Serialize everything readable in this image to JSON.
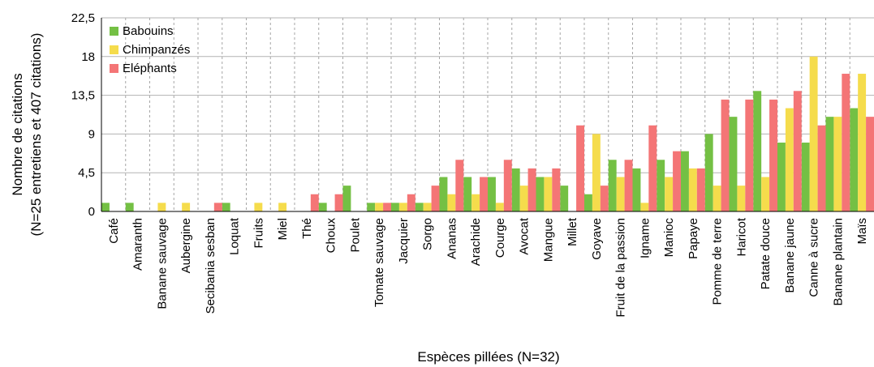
{
  "chart_data": {
    "type": "bar",
    "xlabel": "Espèces pillées (N=32)",
    "ylabel_lines": [
      "Nombre de citations",
      "(N=25 entretiens et 407 citations)"
    ],
    "ylim": [
      0,
      22.5
    ],
    "yticks": [
      "0",
      "4,5",
      "9",
      "13,5",
      "18",
      "22,5"
    ],
    "ytick_values": [
      0,
      4.5,
      9,
      13.5,
      18,
      22.5
    ],
    "grid": true,
    "legend_position": "top-left",
    "categories": [
      "Café",
      "Amaranth",
      "Banane sauvage",
      "Aubergine",
      "Secibania sesban",
      "Loquat",
      "Fruits",
      "Miel",
      "Thé",
      "Choux",
      "Poulet",
      "Tomate sauvage",
      "Jacquier",
      "Sorgo",
      "Ananas",
      "Arachide",
      "Courge",
      "Avocat",
      "Mangue",
      "Millet",
      "Goyave",
      "Fruit de la passion",
      "Igname",
      "Manioc",
      "Papaye",
      "Pomme de terre",
      "Haricot",
      "Patate douce",
      "Banane jaune",
      "Canne à sucre",
      "Banane plantain",
      "Maïs"
    ],
    "series": [
      {
        "name": "Babouins",
        "color": "#74c044",
        "values": [
          1,
          1,
          0,
          0,
          0,
          1,
          0,
          0,
          0,
          1,
          3,
          1,
          1,
          1,
          4,
          4,
          4,
          5,
          4,
          3,
          2,
          6,
          5,
          6,
          7,
          9,
          11,
          14,
          8,
          8,
          11,
          12
        ]
      },
      {
        "name": "Chimpanzés",
        "color": "#f5dc4c",
        "values": [
          0,
          0,
          1,
          1,
          0,
          0,
          1,
          1,
          0,
          0,
          0,
          1,
          1,
          1,
          2,
          2,
          1,
          3,
          4,
          0,
          9,
          4,
          1,
          4,
          5,
          3,
          3,
          4,
          12,
          18,
          11,
          16
        ]
      },
      {
        "name": "Eléphants",
        "color": "#f47576",
        "values": [
          0,
          0,
          0,
          0,
          1,
          0,
          0,
          0,
          2,
          2,
          0,
          1,
          2,
          3,
          6,
          4,
          6,
          5,
          5,
          10,
          3,
          6,
          10,
          7,
          5,
          13,
          13,
          13,
          14,
          10,
          16,
          11
        ]
      }
    ]
  }
}
